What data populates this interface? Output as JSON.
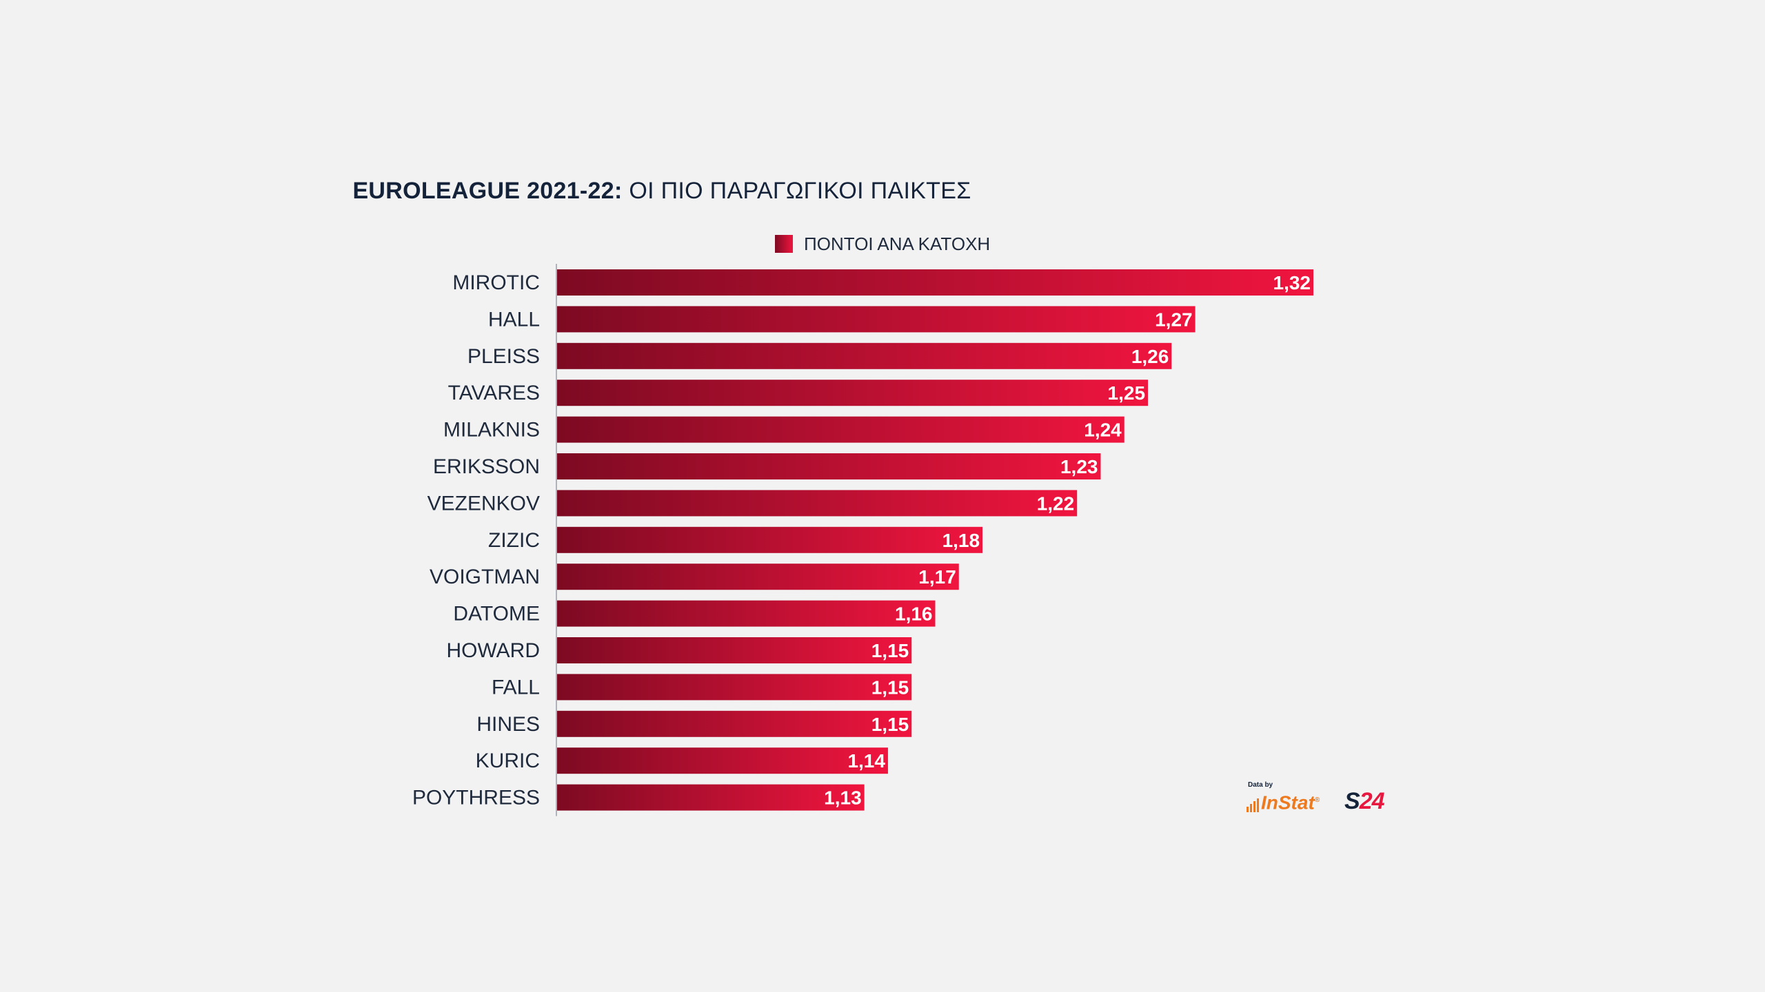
{
  "chart_data": {
    "type": "bar",
    "orientation": "horizontal",
    "title": "EUROLEAGUE 2021-22: ΟΙ ΠΙΟ ΠΑΡΑΓΩΓΙΚΟΙ ΠΑΙΚΤΕΣ",
    "title_bold_part": "EUROLEAGUE 2021-22:",
    "title_light_part": " ΟΙ ΠΙΟ ΠΑΡΑΓΩΓΙΚΟΙ ΠΑΙΚΤΕΣ",
    "legend": "top-center",
    "series": [
      {
        "name": "ΠΟΝΤΟΙ ΑΝΑ ΚΑΤΟΧΗ",
        "color_start": "#7d0a22",
        "color_end": "#f0153f",
        "values": [
          1.32,
          1.27,
          1.26,
          1.25,
          1.24,
          1.23,
          1.22,
          1.18,
          1.17,
          1.16,
          1.15,
          1.15,
          1.15,
          1.14,
          1.13
        ]
      }
    ],
    "categories": [
      "MIROTIC",
      "HALL",
      "PLEISS",
      "TAVARES",
      "MILAKNIS",
      "ERIKSSON",
      "VEZENKOV",
      "ZIZIC",
      "VOIGTMAN",
      "DATOME",
      "HOWARD",
      "FALL",
      "HINES",
      "KURIC",
      "POYTHRESS"
    ],
    "data_labels": [
      "1,32",
      "1,27",
      "1,26",
      "1,25",
      "1,24",
      "1,23",
      "1,22",
      "1,18",
      "1,17",
      "1,16",
      "1,15",
      "1,15",
      "1,15",
      "1,14",
      "1,13"
    ],
    "xlim": [
      1.0,
      1.32
    ],
    "grid": false
  },
  "credit": {
    "data_by": "Data by",
    "source": "InStat",
    "source_mark": "®",
    "brand_s": "S",
    "brand_num": "24"
  },
  "colors": {
    "background": "#f2f2f2",
    "text": "#1f2a3c",
    "bar_start": "#7d0a22",
    "bar_end": "#f0153f",
    "instat": "#ee7a1f",
    "brand_red": "#e8173f"
  }
}
